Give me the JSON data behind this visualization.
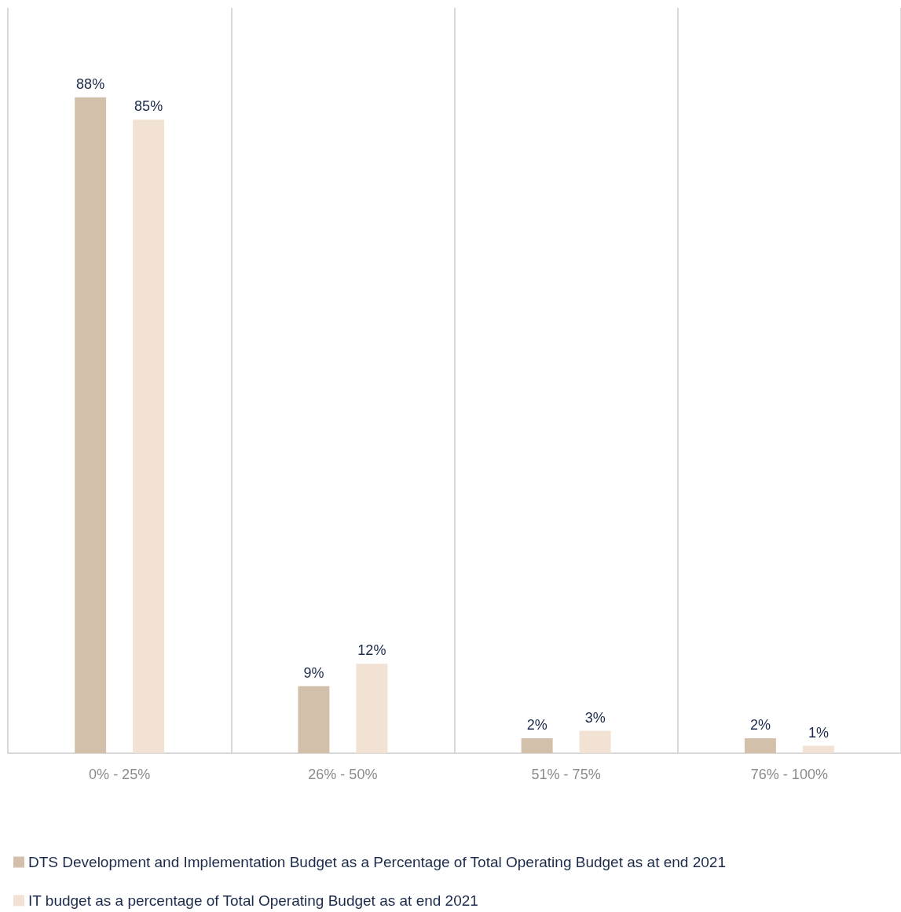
{
  "chart_data": {
    "type": "bar",
    "categories": [
      "0% - 25%",
      "26% - 50%",
      "51% - 75%",
      "76% - 100%"
    ],
    "series": [
      {
        "name": "DTS Development and Implementation Budget as a Percentage of Total Operating Budget as at end 2021",
        "color": "#d3c0aa",
        "values": [
          88,
          9,
          2,
          2
        ],
        "value_labels": [
          "88%",
          "9%",
          "2%",
          "2%"
        ]
      },
      {
        "name": "IT budget as a percentage of Total Operating Budget as at end 2021",
        "color": "#f2e2d3",
        "values": [
          85,
          12,
          3,
          1
        ],
        "value_labels": [
          "85%",
          "12%",
          "3%",
          "1%"
        ]
      }
    ],
    "grid": "x",
    "legend": "bottom left"
  }
}
